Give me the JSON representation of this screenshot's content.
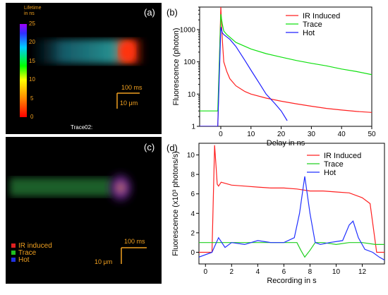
{
  "panel_a": {
    "letter": "(a)",
    "colorbar_title": "Lifetime\nin ns",
    "colorbar_ticks": [
      "25",
      "20",
      "15",
      "10",
      "5",
      "0"
    ],
    "scale_time": "100 ms",
    "scale_length": "10 μm",
    "caption": "Trace02:",
    "colors": {
      "accent": "#f0a020"
    }
  },
  "panel_c": {
    "letter": "(c)",
    "legend": [
      {
        "label": "IR induced",
        "color": "#e02020"
      },
      {
        "label": "Trace",
        "color": "#20c020"
      },
      {
        "label": "Hot",
        "color": "#2030e0"
      }
    ],
    "scale_time": "100 ms",
    "scale_length": "10 μm"
  },
  "chart_data": [
    {
      "type": "line",
      "panel": "(b)",
      "xlabel": "Delay in ns",
      "ylabel": "Fluorescence (photon)",
      "xlim": [
        -7,
        50
      ],
      "ylim": [
        1,
        5000
      ],
      "yscale": "log",
      "x_ticks": [
        "0",
        "10",
        "20",
        "30",
        "40",
        "50"
      ],
      "y_ticks": [
        "1",
        "10",
        "100",
        "1000"
      ],
      "legend_position": "top-right",
      "series": [
        {
          "name": "IR Induced",
          "color": "#ff2020",
          "x": [
            -7,
            -1,
            0,
            0.5,
            1,
            2,
            3,
            5,
            8,
            10,
            15,
            20,
            25,
            30,
            35,
            40,
            45,
            50
          ],
          "y": [
            1,
            1,
            5000,
            500,
            100,
            50,
            30,
            18,
            12,
            10,
            7.5,
            6,
            5,
            4.2,
            3.6,
            3.2,
            2.9,
            2.7
          ]
        },
        {
          "name": "Trace",
          "color": "#10e010",
          "x": [
            -7,
            -1,
            0,
            0.5,
            1,
            2,
            5,
            10,
            15,
            20,
            25,
            30,
            35,
            40,
            45,
            50
          ],
          "y": [
            3,
            3,
            3000,
            1500,
            900,
            700,
            400,
            250,
            180,
            140,
            110,
            90,
            75,
            60,
            50,
            40
          ]
        },
        {
          "name": "Hot",
          "color": "#2020ff",
          "x": [
            -7,
            -1,
            0,
            0.5,
            1,
            3,
            5,
            8,
            10,
            13,
            15,
            18,
            20,
            22
          ],
          "y": [
            1,
            1,
            1200,
            800,
            700,
            500,
            300,
            110,
            55,
            20,
            10,
            5,
            3,
            1.5
          ]
        }
      ]
    },
    {
      "type": "line",
      "panel": "(d)",
      "xlabel": "Recording in s",
      "ylabel": "Fluorescence (x10³ photons/s)",
      "xlim": [
        -0.5,
        13.7
      ],
      "ylim": [
        -1.2,
        11.2
      ],
      "x_ticks": [
        "0",
        "2",
        "4",
        "6",
        "8",
        "10",
        "12"
      ],
      "y_ticks": [
        "0",
        "2",
        "4",
        "6",
        "8",
        "10"
      ],
      "legend_position": "top-right",
      "series": [
        {
          "name": "IR Induced",
          "color": "#ff2020",
          "x": [
            -0.5,
            0.5,
            0.7,
            0.8,
            0.9,
            1.0,
            1.2,
            2,
            3,
            4,
            5,
            6,
            7,
            8,
            9,
            10,
            11,
            12,
            12.6,
            12.9,
            13.1,
            13.7
          ],
          "y": [
            0,
            0,
            11,
            9,
            7,
            6.8,
            7.2,
            6.9,
            6.8,
            6.7,
            6.6,
            6.6,
            6.5,
            6.3,
            6.3,
            6.2,
            6.1,
            5.6,
            5.0,
            2.0,
            0,
            0
          ]
        },
        {
          "name": "Trace",
          "color": "#20d020",
          "x": [
            -0.5,
            1,
            2,
            3,
            4,
            5,
            6,
            7,
            7.3,
            7.6,
            8.0,
            8.4,
            9,
            10,
            11,
            12,
            13,
            13.7
          ],
          "y": [
            1.0,
            1.0,
            1.0,
            1.0,
            1.0,
            1.0,
            1.0,
            1.0,
            0.2,
            -0.5,
            0.2,
            1.0,
            1.0,
            0.8,
            1.0,
            1.0,
            0.8,
            0.8
          ]
        },
        {
          "name": "Hot",
          "color": "#2030ff",
          "x": [
            -0.5,
            0.5,
            1,
            1.5,
            2,
            3,
            4,
            5,
            6,
            6.8,
            7.2,
            7.6,
            8.0,
            8.4,
            8.8,
            9.5,
            10.5,
            11.0,
            11.3,
            11.7,
            12.2,
            12.8,
            13.3,
            13.7
          ],
          "y": [
            -0.5,
            0,
            1.5,
            0.5,
            1.0,
            0.8,
            1.2,
            1.0,
            1.0,
            1.5,
            4.0,
            7.8,
            4.0,
            1.0,
            0.8,
            1.0,
            1.2,
            2.8,
            3.2,
            1.5,
            0.3,
            0,
            -0.5,
            -0.8
          ]
        }
      ]
    }
  ]
}
